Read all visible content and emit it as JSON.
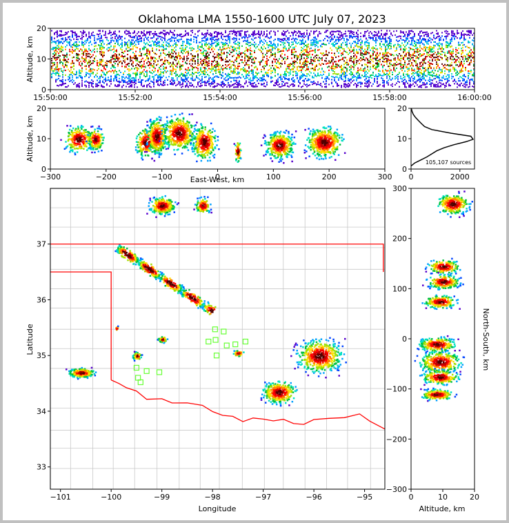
{
  "title": "Oklahoma LMA 1550-1600 UTC July 07, 2023",
  "source_count": "105,107 sources",
  "colors": {
    "border": "#ff0000",
    "counties": "#c8c8c8",
    "stations": "#66ff33",
    "frame": "#c0c0c0"
  },
  "colormap": [
    "#5500cc",
    "#0044ff",
    "#00a0ff",
    "#00e0c0",
    "#00c040",
    "#a0e000",
    "#ffe000",
    "#ff8000",
    "#ff0000",
    "#c00000",
    "#500000"
  ],
  "chart_data": [
    {
      "id": "time-altitude",
      "type": "scatter",
      "ylabel": "Altitude, km",
      "xlabel": "",
      "xticks": [
        "15:50:00",
        "15:52:00",
        "15:54:00",
        "15:56:00",
        "15:58:00",
        "16:00:00"
      ],
      "xlim": [
        "15:50:00",
        "16:00:00"
      ],
      "yticks": [
        "0",
        "10",
        "20"
      ],
      "ylim": [
        0,
        20
      ]
    },
    {
      "id": "ew-altitude",
      "type": "scatter",
      "xlabel": "East-West, km",
      "ylabel": "Altitude, km",
      "xticks": [
        "−300",
        "−200",
        "−100",
        "0",
        "100",
        "200",
        "300"
      ],
      "xlim": [
        -300,
        300
      ],
      "yticks": [
        "0",
        "10",
        "20"
      ],
      "ylim": [
        0,
        20
      ]
    },
    {
      "id": "altitude-histogram",
      "type": "line",
      "xticks": [
        "0",
        "2000"
      ],
      "xlim": [
        0,
        2600
      ],
      "yticks": [
        "0",
        "10",
        "20"
      ],
      "ylim": [
        0,
        20
      ],
      "profile": [
        [
          0,
          1.0
        ],
        [
          150,
          2.0
        ],
        [
          400,
          3.0
        ],
        [
          650,
          4.0
        ],
        [
          850,
          5.0
        ],
        [
          1050,
          6.0
        ],
        [
          1350,
          7.0
        ],
        [
          1750,
          8.0
        ],
        [
          2250,
          9.0
        ],
        [
          2540,
          9.8
        ],
        [
          2450,
          10.8
        ],
        [
          1650,
          11.8
        ],
        [
          850,
          13.0
        ],
        [
          550,
          14.0
        ],
        [
          420,
          15.0
        ],
        [
          300,
          16.0
        ],
        [
          180,
          17.0
        ],
        [
          90,
          18.0
        ],
        [
          40,
          19.0
        ],
        [
          10,
          20.0
        ]
      ]
    },
    {
      "id": "plan-view",
      "type": "scatter",
      "xlabel": "Longitude",
      "ylabel": "Latitude",
      "xticks": [
        "−101",
        "−100",
        "−99",
        "−98",
        "−97",
        "−96",
        "−95"
      ],
      "xlim": [
        -101.2,
        -94.6
      ],
      "yticks": [
        "33",
        "34",
        "35",
        "36",
        "37"
      ],
      "ylim": [
        32.6,
        38.0
      ],
      "stations": [
        [
          -97.95,
          35.47
        ],
        [
          -97.78,
          35.43
        ],
        [
          -98.08,
          35.25
        ],
        [
          -97.94,
          35.28
        ],
        [
          -97.72,
          35.18
        ],
        [
          -97.55,
          35.2
        ],
        [
          -97.35,
          35.25
        ],
        [
          -97.92,
          35.0
        ],
        [
          -99.5,
          34.78
        ],
        [
          -99.3,
          34.72
        ],
        [
          -99.05,
          34.7
        ],
        [
          -99.47,
          34.6
        ],
        [
          -99.42,
          34.52
        ]
      ]
    },
    {
      "id": "altitude-ns",
      "type": "scatter",
      "xlabel": "Altitude, km",
      "ylabel": "North-South, km",
      "xticks": [
        "0",
        "10",
        "20"
      ],
      "xlim": [
        0,
        20
      ],
      "yticks": [
        "−300",
        "−200",
        "−100",
        "0",
        "100",
        "200",
        "300"
      ],
      "ylim": [
        -300,
        300
      ]
    }
  ]
}
